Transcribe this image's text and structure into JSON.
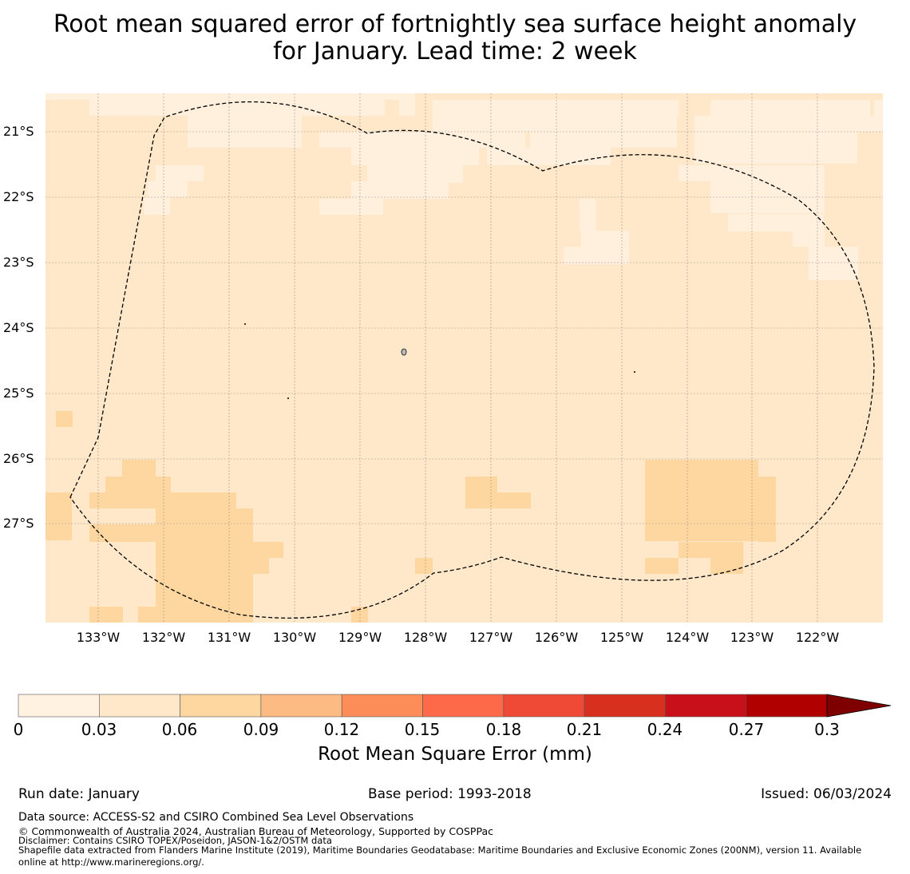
{
  "title": {
    "line1": "Root mean squared error of fortnightly sea surface height anomaly",
    "line2": "for January. Lead time: 2 week"
  },
  "map": {
    "lat_labels": [
      "21°S",
      "22°S",
      "23°S",
      "24°S",
      "25°S",
      "26°S",
      "27°S"
    ],
    "lon_labels": [
      "133°W",
      "132°W",
      "131°W",
      "130°W",
      "129°W",
      "128°W",
      "127°W",
      "126°W",
      "125°W",
      "124°W",
      "123°W",
      "122°W"
    ],
    "colors": {
      "background": "#fee8c9",
      "low": "#fef0dd",
      "mid": "#fdd6a0",
      "boundary": "#000000",
      "grid": "#7f7f7f"
    }
  },
  "colorbar": {
    "ticks": [
      "0",
      "0.03",
      "0.06",
      "0.09",
      "0.12",
      "0.15",
      "0.18",
      "0.21",
      "0.24",
      "0.27",
      "0.3"
    ],
    "colors": [
      "#fff2e0",
      "#fee8c9",
      "#fdd6a0",
      "#fdbb84",
      "#fc8d59",
      "#fc6a4a",
      "#ef4a35",
      "#d7301f",
      "#c8101a",
      "#b00000",
      "#7f0000"
    ],
    "label": "Root Mean Square Error (mm)"
  },
  "footer": {
    "run_date": "Run date: January",
    "base_period": "Base period: 1993-2018",
    "issued": "Issued: 06/03/2024",
    "data_source": "Data source: ACCESS-S2 and CSIRO Combined Sea Level Observations",
    "copyright": "© Commonwealth of Australia 2024, Australian Bureau of Meteorology, Supported by COSPPac",
    "disclaimer": "Disclaimer: Contains CSIRO TOPEX/Poseidon, JASON-1&2/OSTM data",
    "shapefile_line1": "Shapefile data extracted from Flanders Marine Institute (2019), Maritime Boundaries Geodatabase: Maritime Boundaries and Exclusive Economic Zones (200NM), version 11. Available",
    "shapefile_line2": "online at http://www.marineregions.org/."
  }
}
